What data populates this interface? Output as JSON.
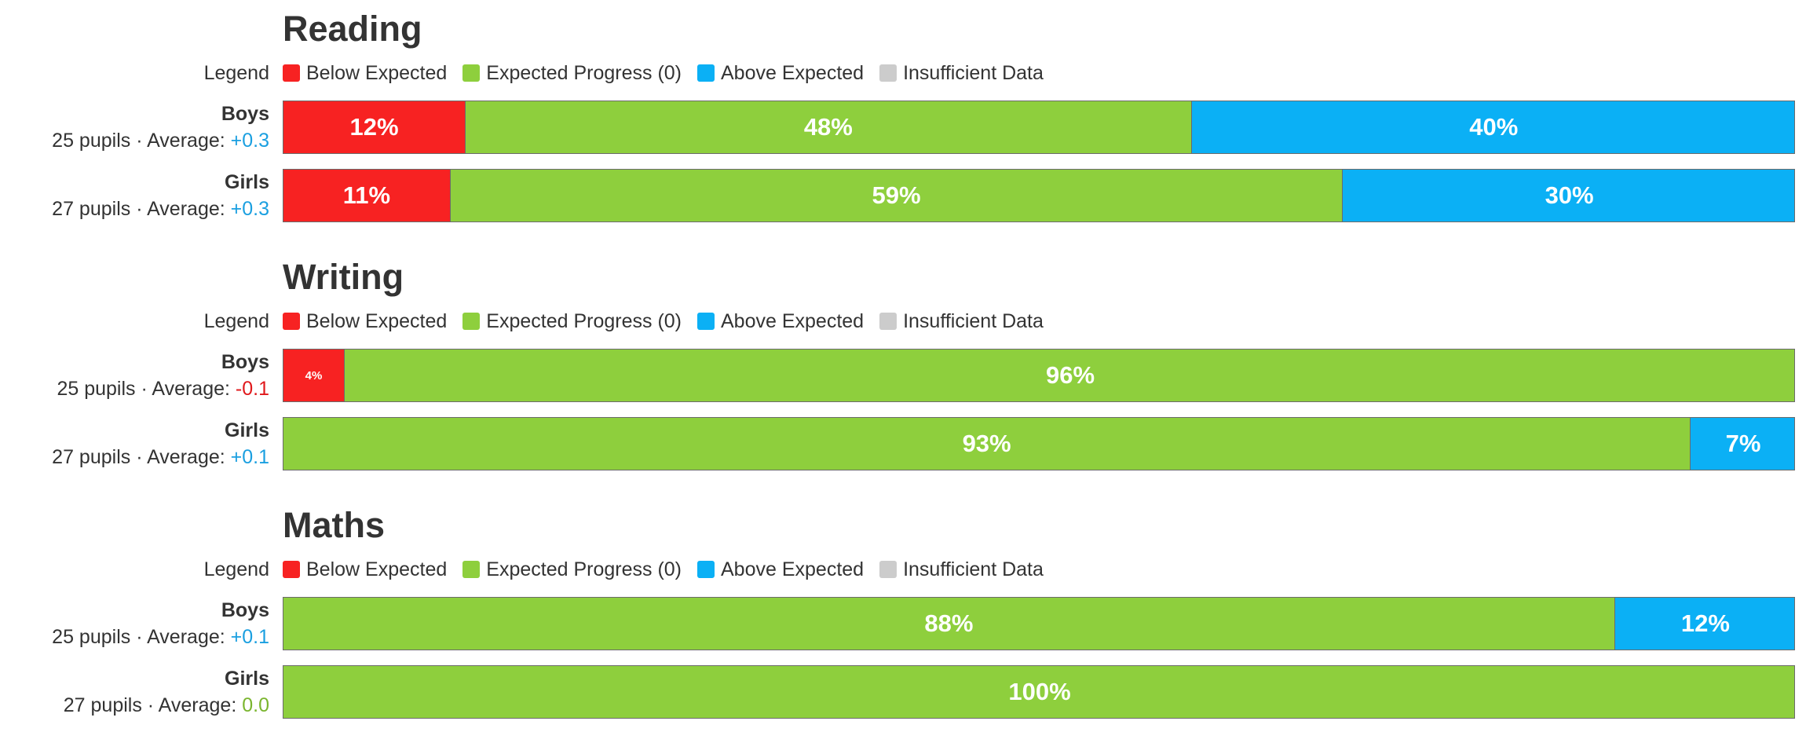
{
  "colors": {
    "below": "#f72222",
    "expected": "#8ecf3d",
    "above": "#0bb0f5",
    "insufficient": "#cccccc",
    "avg_positive": "#1a9fe0",
    "avg_negative": "#e0181b",
    "avg_zero": "#7ab52e"
  },
  "legend": {
    "label": "Legend",
    "items": [
      {
        "key": "below",
        "label": "Below Expected"
      },
      {
        "key": "expected",
        "label": "Expected Progress (0)"
      },
      {
        "key": "above",
        "label": "Above Expected"
      },
      {
        "key": "insufficient",
        "label": "Insufficient Data"
      }
    ]
  },
  "chart_data": [
    {
      "type": "bar",
      "stacked": true,
      "orientation": "horizontal",
      "title": "Reading",
      "categories": [
        "Boys",
        "Girls"
      ],
      "rows": [
        {
          "name": "Boys",
          "meta": "25 pupils · Average: ",
          "average": "+0.3",
          "avg_sign": "positive",
          "segments": [
            {
              "key": "below",
              "value": 12,
              "label": "12%"
            },
            {
              "key": "expected",
              "value": 48,
              "label": "48%"
            },
            {
              "key": "above",
              "value": 40,
              "label": "40%"
            }
          ]
        },
        {
          "name": "Girls",
          "meta": "27 pupils · Average: ",
          "average": "+0.3",
          "avg_sign": "positive",
          "segments": [
            {
              "key": "below",
              "value": 11,
              "label": "11%"
            },
            {
              "key": "expected",
              "value": 59,
              "label": "59%"
            },
            {
              "key": "above",
              "value": 30,
              "label": "30%"
            }
          ]
        }
      ]
    },
    {
      "type": "bar",
      "stacked": true,
      "orientation": "horizontal",
      "title": "Writing",
      "categories": [
        "Boys",
        "Girls"
      ],
      "rows": [
        {
          "name": "Boys",
          "meta": "25 pupils · Average: ",
          "average": "-0.1",
          "avg_sign": "negative",
          "segments": [
            {
              "key": "below",
              "value": 4,
              "label": "4%"
            },
            {
              "key": "expected",
              "value": 96,
              "label": "96%"
            }
          ]
        },
        {
          "name": "Girls",
          "meta": "27 pupils · Average: ",
          "average": "+0.1",
          "avg_sign": "positive",
          "segments": [
            {
              "key": "expected",
              "value": 93,
              "label": "93%"
            },
            {
              "key": "above",
              "value": 7,
              "label": "7%"
            }
          ]
        }
      ]
    },
    {
      "type": "bar",
      "stacked": true,
      "orientation": "horizontal",
      "title": "Maths",
      "categories": [
        "Boys",
        "Girls"
      ],
      "rows": [
        {
          "name": "Boys",
          "meta": "25 pupils · Average: ",
          "average": "+0.1",
          "avg_sign": "positive",
          "segments": [
            {
              "key": "expected",
              "value": 88,
              "label": "88%"
            },
            {
              "key": "above",
              "value": 12,
              "label": "12%"
            }
          ]
        },
        {
          "name": "Girls",
          "meta": "27 pupils · Average: ",
          "average": "0.0",
          "avg_sign": "zero",
          "segments": [
            {
              "key": "expected",
              "value": 100,
              "label": "100%"
            }
          ]
        }
      ]
    }
  ]
}
